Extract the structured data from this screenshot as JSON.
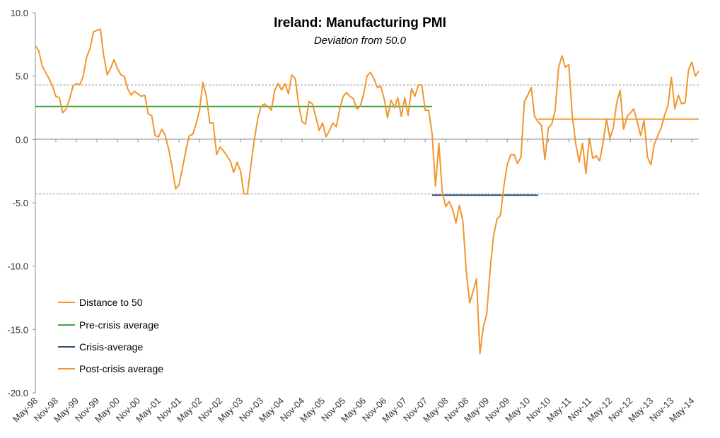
{
  "chart_data": {
    "type": "line",
    "title": "Ireland: Manufacturing PMI",
    "subtitle": "Deviation from 50.0",
    "xlabel": "",
    "ylabel": "",
    "ylim": [
      -20,
      10
    ],
    "y_ticks": [
      "10.0",
      "5.0",
      "0.0",
      "-5.0",
      "-10.0",
      "-15.0",
      "-20.0"
    ],
    "y_tick_values": [
      10,
      5,
      0,
      -5,
      -10,
      -15,
      -20
    ],
    "x_ticks": [
      "May-98",
      "Nov-98",
      "May-99",
      "Nov-99",
      "May-00",
      "Nov-00",
      "May-01",
      "Nov-01",
      "May-02",
      "Nov-02",
      "May-03",
      "Nov-03",
      "May-04",
      "Nov-04",
      "May-05",
      "Nov-05",
      "May-06",
      "Nov-06",
      "May-07",
      "Nov-07",
      "May-08",
      "Nov-08",
      "May-09",
      "Nov-09",
      "May-10",
      "Nov-10",
      "May-11",
      "Nov-11",
      "May-12",
      "Nov-12",
      "May-13",
      "Nov-13",
      "May-14"
    ],
    "reference_lines": [
      4.3,
      -4.3
    ],
    "series": [
      {
        "name": "Distance to 50",
        "color": "#F0962E",
        "values": [
          7.4,
          7.0,
          5.8,
          5.3,
          4.8,
          4.2,
          3.4,
          3.3,
          2.1,
          2.4,
          3.2,
          4.2,
          4.4,
          4.3,
          5.0,
          6.5,
          7.2,
          8.5,
          8.6,
          8.7,
          6.6,
          5.1,
          5.6,
          6.3,
          5.6,
          5.1,
          5.0,
          4.0,
          3.5,
          3.8,
          3.6,
          3.4,
          3.5,
          2.0,
          1.9,
          0.3,
          0.2,
          0.8,
          0.3,
          -0.8,
          -2.2,
          -3.9,
          -3.6,
          -2.3,
          -0.9,
          0.3,
          0.4,
          1.2,
          2.3,
          4.5,
          3.4,
          1.3,
          1.3,
          -1.2,
          -0.6,
          -0.9,
          -1.3,
          -1.7,
          -2.6,
          -1.8,
          -2.5,
          -4.3,
          -4.3,
          -2.1,
          -0.1,
          1.6,
          2.6,
          2.8,
          2.6,
          2.3,
          3.9,
          4.4,
          3.9,
          4.4,
          3.6,
          5.1,
          4.8,
          2.7,
          1.4,
          1.2,
          3.0,
          2.8,
          1.8,
          0.7,
          1.3,
          0.2,
          0.7,
          1.3,
          1.0,
          2.4,
          3.4,
          3.7,
          3.4,
          3.2,
          2.4,
          2.6,
          3.6,
          5.0,
          5.3,
          4.8,
          4.1,
          4.2,
          3.2,
          1.7,
          3.1,
          2.5,
          3.3,
          1.8,
          3.3,
          1.9,
          4.0,
          3.4,
          4.3,
          4.3,
          2.3,
          2.3,
          0.5,
          -3.7,
          -0.3,
          -4.2,
          -5.3,
          -4.9,
          -5.5,
          -6.6,
          -5.2,
          -6.4,
          -10.4,
          -12.9,
          -12.0,
          -11.0,
          -16.9,
          -14.8,
          -13.8,
          -10.2,
          -7.6,
          -6.3,
          -6.0,
          -3.7,
          -2.0,
          -1.2,
          -1.2,
          -1.9,
          -1.4,
          3.0,
          3.5,
          4.1,
          1.8,
          1.4,
          1.1,
          -1.6,
          0.9,
          1.2,
          2.3,
          5.7,
          6.6,
          5.7,
          5.9,
          1.9,
          -0.3,
          -1.8,
          -0.3,
          -2.7,
          0.1,
          -1.5,
          -1.3,
          -1.7,
          -0.3,
          1.6,
          0.1,
          0.9,
          2.9,
          3.9,
          0.8,
          1.8,
          2.1,
          2.4,
          1.4,
          0.3,
          1.5,
          -1.4,
          -2.0,
          -0.4,
          0.3,
          0.9,
          1.9,
          2.7,
          4.9,
          2.4,
          3.5,
          2.8,
          2.9,
          5.5,
          6.1,
          5.0,
          5.4
        ]
      },
      {
        "name": "Pre-crisis average",
        "color": "#3FA33F",
        "value": 2.6
      },
      {
        "name": "Crisis-average",
        "color": "#2D4E7E",
        "value": -4.4
      },
      {
        "name": "Post-crisis average",
        "color": "#F0962E",
        "value": 1.6
      }
    ],
    "legend": [
      {
        "label": "Distance to 50",
        "color": "#F0962E"
      },
      {
        "label": "Pre-crisis average",
        "color": "#3FA33F"
      },
      {
        "label": "Crisis-average",
        "color": "#2D4E7E"
      },
      {
        "label": "Post-crisis average",
        "color": "#F0962E"
      }
    ],
    "legend_position": "bottom-left"
  }
}
